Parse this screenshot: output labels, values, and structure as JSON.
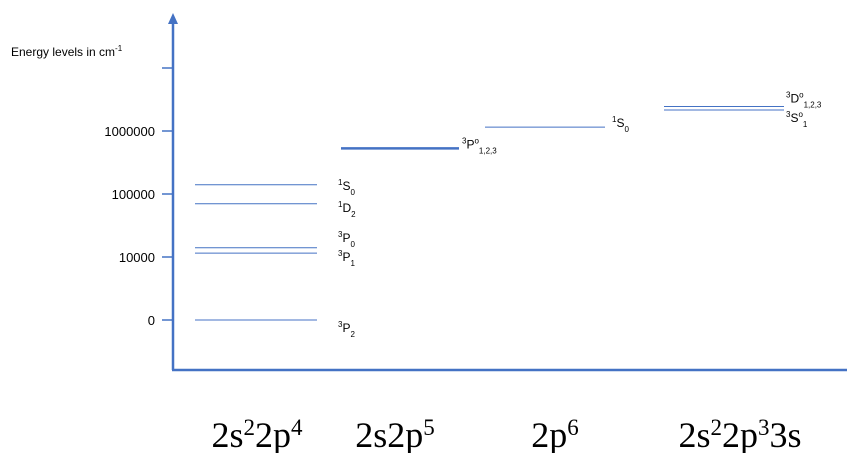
{
  "chart_data": {
    "type": "energy-level-diagram",
    "ylabel": "Energy levels in cm",
    "ylabel_sup": "-1",
    "y_ticks": [
      "0",
      "10000",
      "100000",
      "1000000"
    ],
    "y_scale": "log-like (0, 10^4, 10^5, 10^6)",
    "color": "#4472c4",
    "configurations": [
      {
        "name": "2s²2p⁴",
        "name_parts": [
          [
            "2s",
            ""
          ],
          [
            "2",
            "sup"
          ],
          [
            "2p",
            ""
          ],
          [
            "4",
            "sup"
          ]
        ],
        "levels": [
          {
            "term": "1S0",
            "energy_cm-1": 140000,
            "label_parts": [
              [
                "1",
                "sup"
              ],
              [
                "S",
                ""
              ],
              [
                "0",
                "sub"
              ]
            ]
          },
          {
            "term": "1D2",
            "energy_cm-1": 70000,
            "label_parts": [
              [
                "1",
                "sup"
              ],
              [
                "D",
                ""
              ],
              [
                "2",
                "sub"
              ]
            ]
          },
          {
            "term": "3P0",
            "energy_cm-1": 14000,
            "label_parts": [
              [
                "3",
                "sup"
              ],
              [
                "P",
                ""
              ],
              [
                "0",
                "sub"
              ]
            ]
          },
          {
            "term": "3P1",
            "energy_cm-1": 11500,
            "label_parts": [
              [
                "3",
                "sup"
              ],
              [
                "P",
                ""
              ],
              [
                "1",
                "sub"
              ]
            ]
          },
          {
            "term": "3P2",
            "energy_cm-1": 0,
            "label_parts": [
              [
                "3",
                "sup"
              ],
              [
                "P",
                ""
              ],
              [
                "2",
                "sub"
              ]
            ]
          }
        ]
      },
      {
        "name": "2s2p⁵",
        "name_parts": [
          [
            "2s2p",
            ""
          ],
          [
            "5",
            "sup"
          ]
        ],
        "levels": [
          {
            "term": "3Po1,2,3",
            "energy_cm-1": 530000,
            "label_parts": [
              [
                "3",
                "sup"
              ],
              [
                "P",
                ""
              ],
              [
                "o",
                "sup"
              ],
              [
                "1,2,3",
                "sub"
              ]
            ]
          }
        ]
      },
      {
        "name": "2p⁶",
        "name_parts": [
          [
            "2p",
            ""
          ],
          [
            "6",
            "sup"
          ]
        ],
        "levels": [
          {
            "term": "1S0",
            "energy_cm-1": 1150000,
            "label_parts": [
              [
                "1",
                "sup"
              ],
              [
                "S",
                ""
              ],
              [
                "0",
                "sub"
              ]
            ]
          }
        ]
      },
      {
        "name": "2s²2p³3s",
        "name_parts": [
          [
            "2s",
            ""
          ],
          [
            "2",
            "sup"
          ],
          [
            "2p",
            ""
          ],
          [
            "3",
            "sup"
          ],
          [
            "3s",
            ""
          ]
        ],
        "levels": [
          {
            "term": "3Do1,2,3",
            "energy_cm-1": 2450000,
            "label_parts": [
              [
                "3",
                "sup"
              ],
              [
                "D",
                ""
              ],
              [
                "o",
                "sup"
              ],
              [
                "1,2,3",
                "sub"
              ]
            ]
          },
          {
            "term": "3So1",
            "energy_cm-1": 2150000,
            "label_parts": [
              [
                "3",
                "sup"
              ],
              [
                "S",
                ""
              ],
              [
                "o",
                "sup"
              ],
              [
                "1",
                "sub"
              ]
            ]
          }
        ]
      }
    ]
  }
}
